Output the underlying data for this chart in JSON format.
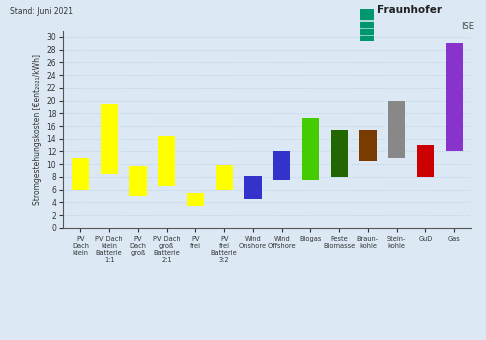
{
  "categories": [
    "PV\nDach\nklein",
    "PV Dach\nklein\nBatterie\n1:1",
    "PV\nDach\ngroß",
    "PV Dach\ngroß\nBatterie\n2:1",
    "PV\nfrei",
    "PV\nfrei\nBatterie\n3:2",
    "Wind\nOnshore",
    "Wind\nOffshore",
    "Biogas",
    "Feste\nBiomasse",
    "Braun-\nkohle",
    "Stein-\nkohle",
    "GuD",
    "Gas"
  ],
  "bar_bottoms": [
    6.0,
    8.5,
    5.0,
    6.5,
    3.5,
    6.0,
    4.5,
    7.5,
    7.5,
    8.0,
    10.5,
    11.0,
    8.0,
    12.0
  ],
  "bar_tops": [
    11.0,
    19.5,
    9.7,
    14.5,
    5.5,
    9.8,
    8.2,
    12.0,
    17.2,
    15.3,
    15.3,
    20.0,
    13.0,
    29.0
  ],
  "bar_colors": [
    "#ffff00",
    "#ffff00",
    "#ffff00",
    "#ffff00",
    "#ffff00",
    "#ffff00",
    "#3333cc",
    "#3333cc",
    "#44cc00",
    "#226600",
    "#7a3b00",
    "#888888",
    "#cc0000",
    "#8833cc"
  ],
  "ylabel": "Stromgestehungskosten [€ent₂₀₂₁/kWh]",
  "ylim": [
    0,
    31
  ],
  "yticks": [
    0,
    2,
    4,
    6,
    8,
    10,
    12,
    14,
    16,
    18,
    20,
    22,
    24,
    26,
    28,
    30
  ],
  "background_color": "#dce9f5",
  "grid_color": "#b8cfe8",
  "header_text": "Stand: Juni 2021",
  "logo_color": "#00966e"
}
